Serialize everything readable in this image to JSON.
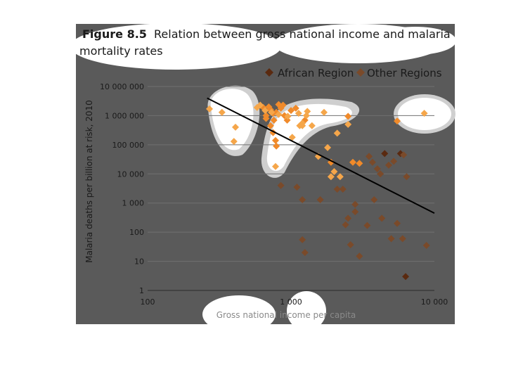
{
  "figure": {
    "label": "Figure 8.5",
    "caption": "Relation between gross national income and malaria mortality rates",
    "caption_line1": "Relation between gross national income and malaria",
    "caption_line2": "mortality rates"
  },
  "colors": {
    "panel": "#5a5a5a",
    "grid": "#707070",
    "african": "#5a2a10",
    "african_highlight": "#f08a2a",
    "other": "#7a4a2a",
    "other_highlight": "#f5a64a",
    "trend": "#000000",
    "text_dark": "#1a1a1a",
    "text_light": "#e8e8e8"
  },
  "chart_data": {
    "type": "scatter",
    "title": "Figure 8.5 Relation between gross national income and malaria mortality rates",
    "xlabel": "Gross national income per capita",
    "ylabel": "Malaria deaths per billion at risk, 2010",
    "xscale": "log",
    "yscale": "log",
    "xlim": [
      100,
      10000
    ],
    "ylim": [
      1,
      10000000
    ],
    "x_ticks": [
      {
        "value": 100,
        "label": "100"
      },
      {
        "value": 1000,
        "label": "1 000"
      },
      {
        "value": 10000,
        "label": "10 000"
      }
    ],
    "y_ticks": [
      {
        "value": 1,
        "label": "1"
      },
      {
        "value": 10,
        "label": "10"
      },
      {
        "value": 100,
        "label": "100"
      },
      {
        "value": 1000,
        "label": "1 000"
      },
      {
        "value": 10000,
        "label": "10 000"
      },
      {
        "value": 100000,
        "label": "100 000"
      },
      {
        "value": 1000000,
        "label": "1 000 000"
      },
      {
        "value": 10000000,
        "label": "10 000 000"
      }
    ],
    "grid": true,
    "legend_position": "top-right",
    "series": [
      {
        "name": "African Region",
        "marker": "diamond",
        "points": [
          [
            670,
            800000
          ],
          [
            700,
            2000000
          ],
          [
            720,
            1600000
          ],
          [
            750,
            1200000
          ],
          [
            760,
            700000
          ],
          [
            790,
            1300000
          ],
          [
            820,
            2400000
          ],
          [
            850,
            1800000
          ],
          [
            880,
            2300000
          ],
          [
            900,
            1000000
          ],
          [
            940,
            700000
          ],
          [
            1000,
            1500000
          ],
          [
            1080,
            1800000
          ],
          [
            720,
            450000
          ],
          [
            750,
            260000
          ],
          [
            780,
            140000
          ],
          [
            790,
            90000
          ],
          [
            640,
            1900000
          ],
          [
            670,
            1000000
          ],
          [
            1250,
            700000
          ],
          [
            1900,
            25000
          ],
          [
            2500,
            950000
          ],
          [
            2700,
            25000
          ],
          [
            3000,
            23000
          ],
          [
            4500,
            50000
          ],
          [
            5500,
            650000
          ],
          [
            5800,
            50000
          ],
          [
            6300,
            3
          ]
        ]
      },
      {
        "name": "Other Regions",
        "marker": "diamond",
        "points": [
          [
            270,
            1700000
          ],
          [
            330,
            1300000
          ],
          [
            410,
            400000
          ],
          [
            400,
            130000
          ],
          [
            580,
            1900000
          ],
          [
            610,
            2300000
          ],
          [
            660,
            1500000
          ],
          [
            730,
            1300000
          ],
          [
            1020,
            180000
          ],
          [
            1130,
            1200000
          ],
          [
            1200,
            550000
          ],
          [
            1150,
            450000
          ],
          [
            1300,
            1400000
          ],
          [
            1400,
            450000
          ],
          [
            1280,
            1000000
          ],
          [
            1700,
            1300000
          ],
          [
            820,
            1100000
          ],
          [
            950,
            950000
          ],
          [
            1200,
            450000
          ],
          [
            1800,
            80000
          ],
          [
            2100,
            250000
          ],
          [
            2200,
            8000
          ],
          [
            2300,
            3000
          ],
          [
            2500,
            500000
          ],
          [
            2800,
            900
          ],
          [
            2800,
            500
          ],
          [
            2500,
            300
          ],
          [
            2400,
            180
          ],
          [
            2600,
            37
          ],
          [
            3000,
            15
          ],
          [
            3400,
            170
          ],
          [
            3500,
            40000
          ],
          [
            3700,
            25000
          ],
          [
            3800,
            1300
          ],
          [
            4000,
            15000
          ],
          [
            4200,
            10000
          ],
          [
            4300,
            300
          ],
          [
            4800,
            20000
          ],
          [
            5200,
            27000
          ],
          [
            5000,
            60
          ],
          [
            5500,
            200
          ],
          [
            6000,
            60
          ],
          [
            6100,
            45000
          ],
          [
            6400,
            8000
          ],
          [
            8500,
            1200000
          ],
          [
            8800,
            35
          ],
          [
            1100,
            3500
          ],
          [
            1200,
            55
          ],
          [
            1250,
            20
          ],
          [
            1200,
            1300
          ],
          [
            850,
            4000
          ],
          [
            780,
            18000
          ],
          [
            1550,
            40000
          ],
          [
            1600,
            1300
          ],
          [
            1900,
            8000
          ],
          [
            2000,
            12000
          ],
          [
            2100,
            3000
          ]
        ]
      }
    ],
    "trendline": {
      "from": [
        260,
        4000000
      ],
      "to": [
        10000,
        450
      ]
    }
  }
}
